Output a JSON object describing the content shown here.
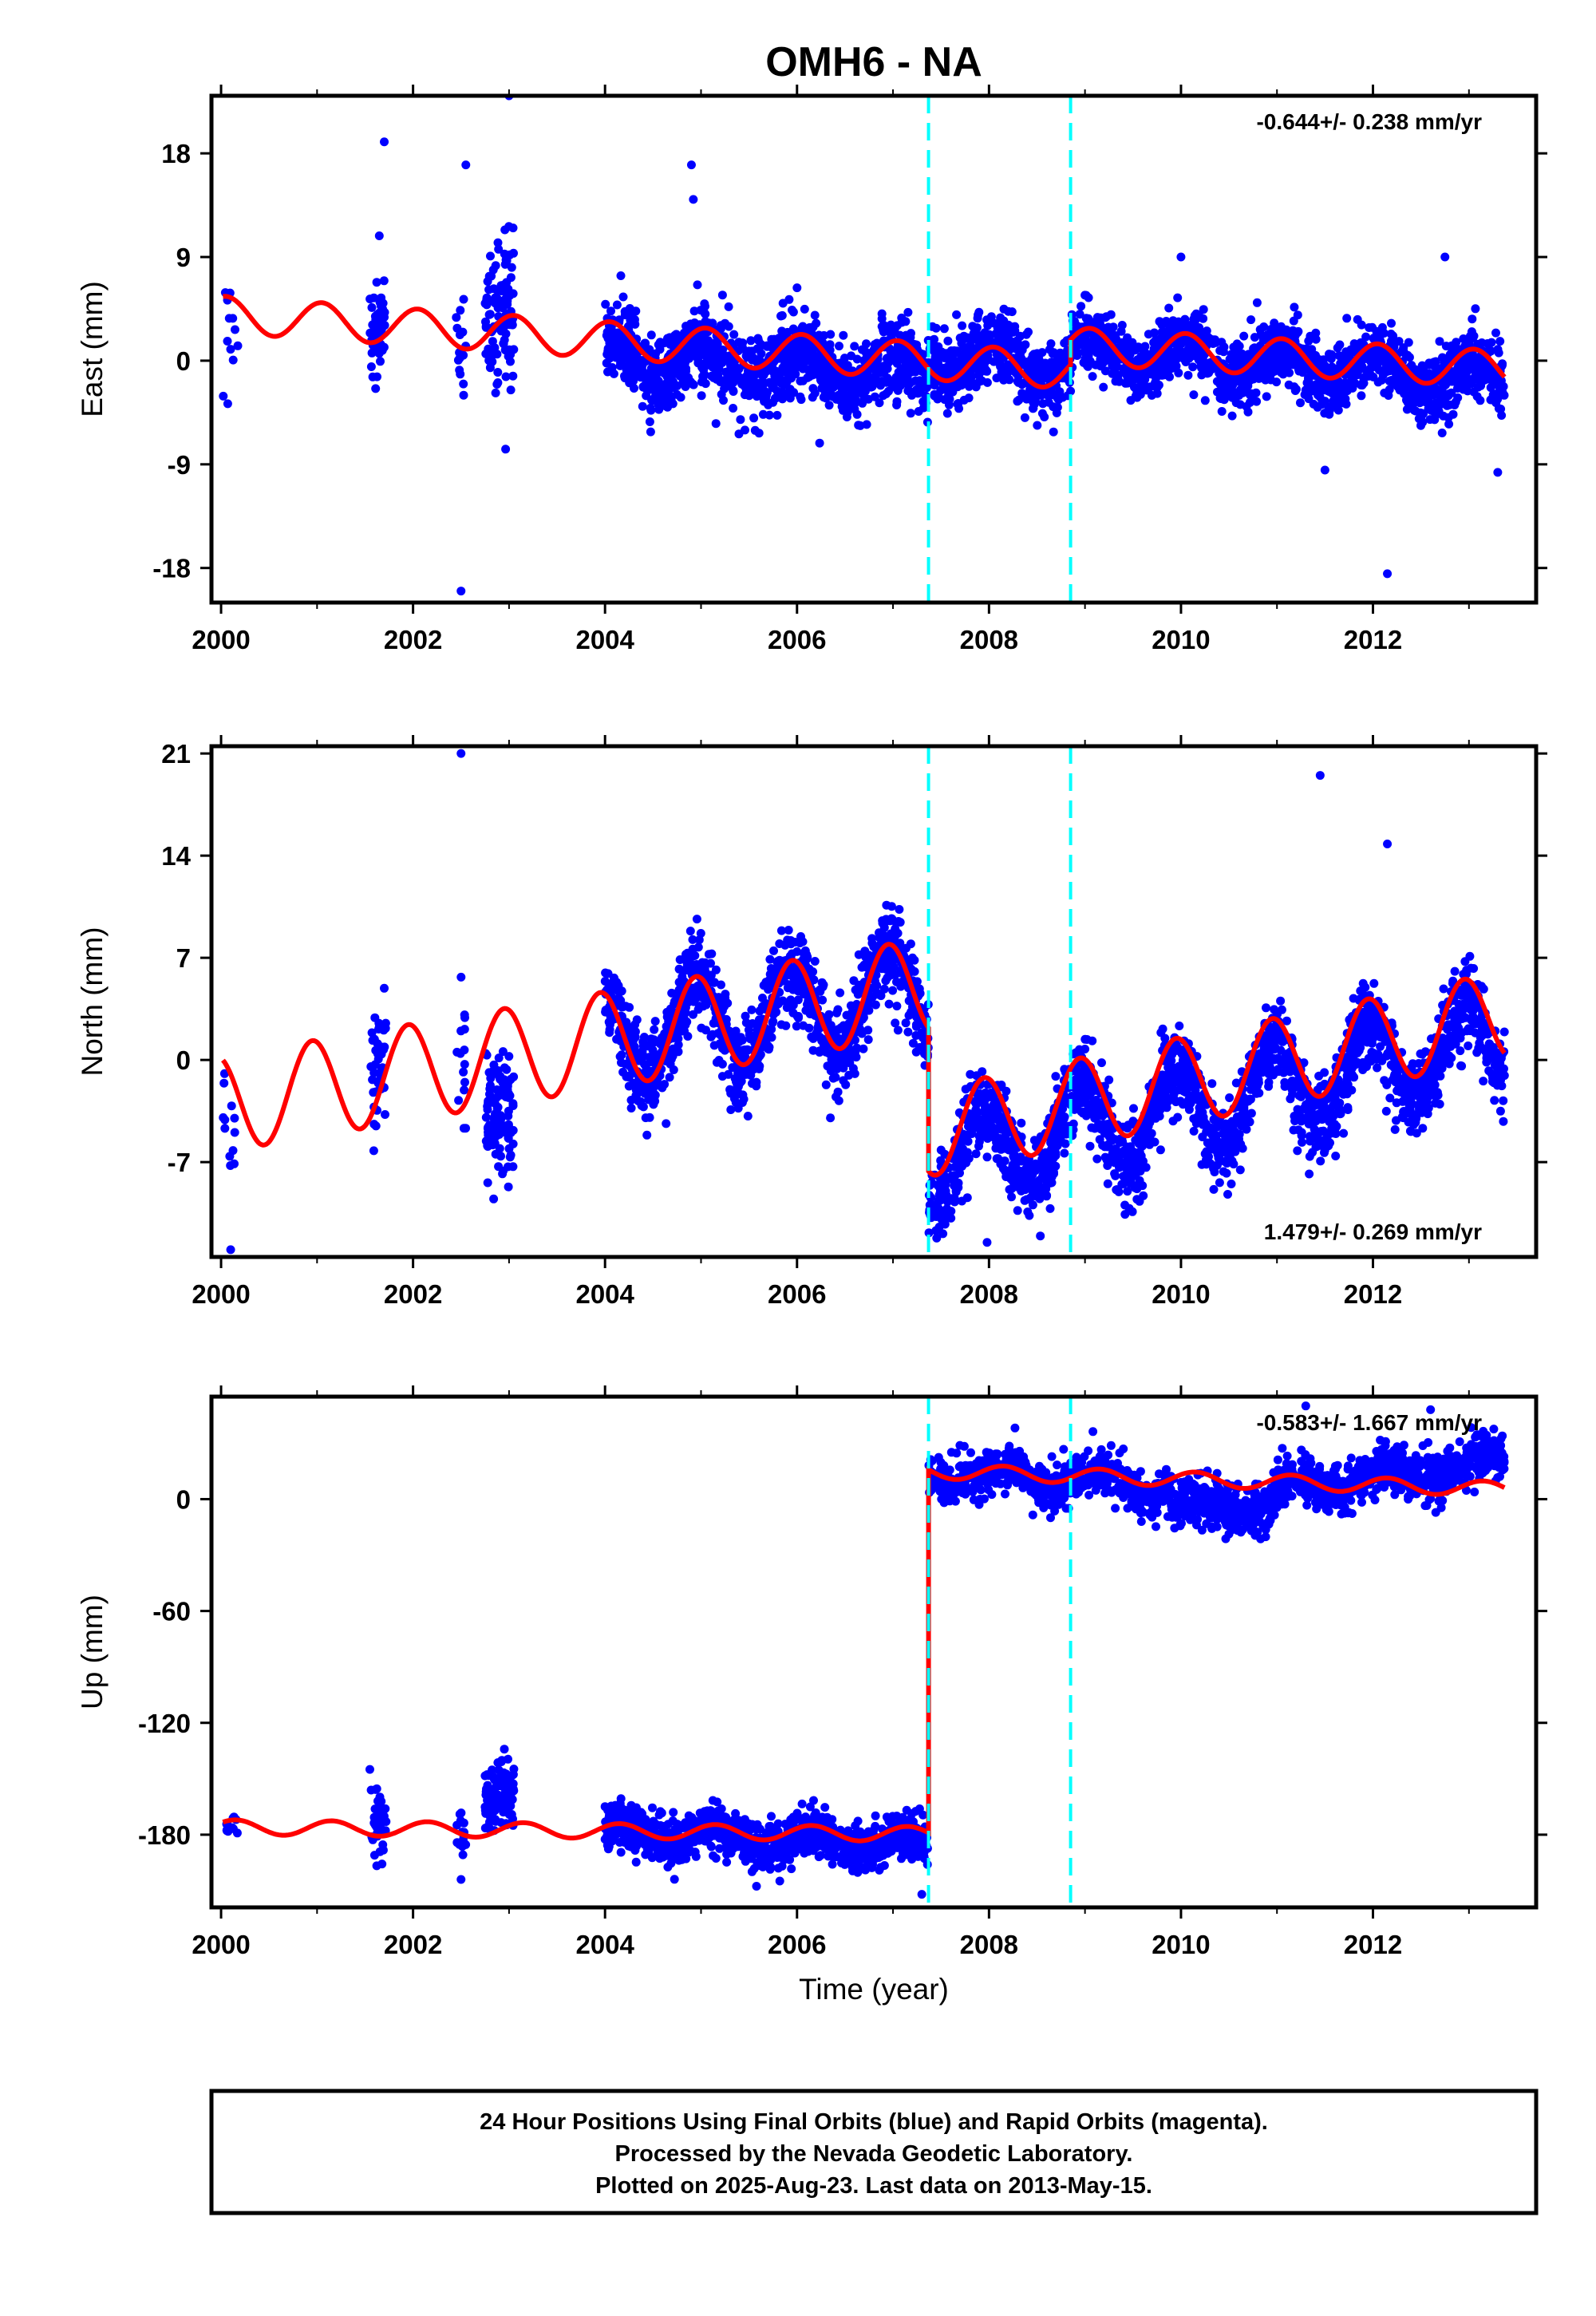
{
  "title": "OMH6 - NA",
  "colors": {
    "final_orbits": "#0000ff",
    "model": "#ff0000",
    "offset_line": "#00ffff",
    "frame": "#000000"
  },
  "footer": {
    "line1": "24 Hour Positions Using Final Orbits (blue) and Rapid Orbits (magenta).",
    "line2": "Processed by the Nevada Geodetic Laboratory.",
    "line3": "Plotted on 2025-Aug-23. Last data on 2013-May-15."
  },
  "chart_data": [
    {
      "type": "scatter",
      "component": "east",
      "ylabel": "East (mm)",
      "xlabel": "",
      "rate_text": "-0.644+/- 0.238 mm/yr",
      "rate_position": "top-right",
      "xlim": [
        1999.9,
        2013.7
      ],
      "ylim": [
        -21,
        23
      ],
      "xticks": [
        2000,
        2002,
        2004,
        2006,
        2008,
        2010,
        2012
      ],
      "yticks": [
        18,
        9,
        0,
        -9,
        -18
      ],
      "ytick_labels": [
        "18",
        "9",
        "0",
        "-9",
        "-18"
      ],
      "offset_epochs": [
        2007.37,
        2008.85
      ],
      "model_step_at": 2008.85,
      "outliers": [
        [
          2002.5,
          -20
        ],
        [
          2002.55,
          17
        ],
        [
          2003.0,
          23
        ],
        [
          2001.7,
          19
        ],
        [
          2012.15,
          -18.5
        ],
        [
          2011.5,
          -9.5
        ],
        [
          2013.3,
          -9.7
        ],
        [
          2004.9,
          17
        ],
        [
          2004.92,
          14
        ],
        [
          2010.0,
          9
        ],
        [
          2012.75,
          9
        ]
      ],
      "series": [
        {
          "name": "Final Orbits",
          "color": "#0000ff",
          "segments": [
            {
              "x_start": 2000.02,
              "x_end": 2000.18,
              "base": 2.5,
              "trend": 0,
              "amp": 0.5,
              "phase": 0.2,
              "noise": 2.2,
              "n": 12
            },
            {
              "x_start": 2001.55,
              "x_end": 2001.72,
              "base": 3.5,
              "trend": 0,
              "amp": 0.5,
              "phase": 0.2,
              "noise": 2.6,
              "n": 45
            },
            {
              "x_start": 2002.45,
              "x_end": 2002.55,
              "base": 1.5,
              "trend": 0,
              "amp": 0.5,
              "phase": 0.2,
              "noise": 2.5,
              "n": 15
            },
            {
              "x_start": 2002.75,
              "x_end": 2003.05,
              "base": 4.0,
              "trend": 0,
              "amp": 0.5,
              "phase": 0.2,
              "noise": 3.0,
              "n": 110
            },
            {
              "x_start": 2004.0,
              "x_end": 2007.37,
              "base": 0.5,
              "trend": -0.5,
              "amp": 1.5,
              "phase": 0.2,
              "noise": 1.7,
              "n": 1150
            },
            {
              "x_start": 2007.37,
              "x_end": 2008.85,
              "base": 0.5,
              "trend": -0.6,
              "amp": 1.5,
              "phase": 0.2,
              "noise": 1.5,
              "n": 500
            },
            {
              "x_start": 2008.85,
              "x_end": 2013.37,
              "base": 1.0,
              "trend": -0.6,
              "amp": 1.5,
              "phase": 0.2,
              "noise": 1.4,
              "n": 1500
            }
          ]
        },
        {
          "name": "Model",
          "color": "#ff0000",
          "segments": [
            {
              "x_start": 2000.02,
              "x_end": 2008.85,
              "base": 4.0,
              "trend": -0.55,
              "amp": 1.6,
              "phase": 0.2
            },
            {
              "x_start": 2008.85,
              "x_end": 2013.37,
              "base": 1.3,
              "trend": -0.45,
              "amp": 1.6,
              "phase": 0.2
            }
          ]
        }
      ]
    },
    {
      "type": "scatter",
      "component": "north",
      "ylabel": "North (mm)",
      "xlabel": "",
      "rate_text": "1.479+/- 0.269 mm/yr",
      "rate_position": "bottom-right",
      "xlim": [
        1999.9,
        2013.7
      ],
      "ylim": [
        -13.5,
        21.5
      ],
      "xticks": [
        2000,
        2002,
        2004,
        2006,
        2008,
        2010,
        2012
      ],
      "yticks": [
        21,
        14,
        7,
        0,
        -7
      ],
      "ytick_labels": [
        "21",
        "14",
        "7",
        "0",
        "-7"
      ],
      "offset_epochs": [
        2007.37,
        2008.85
      ],
      "model_step_at": 2007.37,
      "outliers": [
        [
          2002.5,
          21
        ],
        [
          2011.45,
          19.5
        ],
        [
          2012.15,
          14.8
        ],
        [
          2000.1,
          -13
        ],
        [
          2007.98,
          -12.5
        ]
      ],
      "series": [
        {
          "name": "Final Orbits",
          "color": "#0000ff",
          "segments": [
            {
              "x_start": 2000.02,
              "x_end": 2000.18,
              "base": -7.5,
              "trend": 1.5,
              "amp": 3.5,
              "phase": 0.3,
              "noise": 1.8,
              "n": 12
            },
            {
              "x_start": 2001.55,
              "x_end": 2001.72,
              "base": 0.0,
              "trend": 0,
              "amp": 1.0,
              "phase": 0.3,
              "noise": 2.3,
              "n": 45
            },
            {
              "x_start": 2002.45,
              "x_end": 2002.55,
              "base": 2.0,
              "trend": 0,
              "amp": 1.0,
              "phase": 0.3,
              "noise": 2.3,
              "n": 15
            },
            {
              "x_start": 2002.75,
              "x_end": 2003.05,
              "base": -4.5,
              "trend": 0,
              "amp": 1.0,
              "phase": 0.3,
              "noise": 2.1,
              "n": 110
            },
            {
              "x_start": 2004.0,
              "x_end": 2007.37,
              "base": 1.5,
              "trend": 0.9,
              "amp": 3.3,
              "phase": 0.3,
              "noise": 1.5,
              "n": 1150
            },
            {
              "x_start": 2007.37,
              "x_end": 2013.37,
              "base": -7.0,
              "trend": 1.4,
              "amp": 3.0,
              "phase": 0.3,
              "noise": 1.4,
              "n": 2000
            }
          ]
        },
        {
          "name": "Model",
          "color": "#ff0000",
          "segments": [
            {
              "x_start": 2000.02,
              "x_end": 2007.37,
              "base": -3.0,
              "trend": 1.1,
              "amp": 3.3,
              "phase": 0.3
            },
            {
              "x_start": 2007.37,
              "x_end": 2013.37,
              "base": -5.0,
              "trend": 1.35,
              "amp": 3.0,
              "phase": 0.3
            }
          ]
        }
      ]
    },
    {
      "type": "scatter",
      "component": "up",
      "ylabel": "Up (mm)",
      "xlabel": "Time (year)",
      "rate_text": "-0.583+/- 1.667 mm/yr",
      "rate_position": "top-right",
      "xlim": [
        1999.9,
        2013.7
      ],
      "ylim": [
        -219,
        55
      ],
      "xticks": [
        2000,
        2002,
        2004,
        2006,
        2008,
        2010,
        2012
      ],
      "yticks": [
        0,
        -60,
        -120,
        -180
      ],
      "ytick_labels": [
        "0",
        "-60",
        "-120",
        "-180"
      ],
      "offset_epochs": [
        2007.37,
        2008.85
      ],
      "model_step_at": 2007.37,
      "outliers": [
        [
          2001.55,
          -145
        ],
        [
          2002.5,
          -204
        ],
        [
          2007.3,
          -212
        ],
        [
          2011.3,
          50
        ],
        [
          2012.6,
          48
        ]
      ],
      "series": [
        {
          "name": "Final Orbits",
          "color": "#0000ff",
          "segments": [
            {
              "x_start": 2000.02,
              "x_end": 2000.18,
              "base": -178,
              "trend": 0,
              "amp": 2,
              "phase": 0.1,
              "noise": 4,
              "n": 12
            },
            {
              "x_start": 2001.55,
              "x_end": 2001.72,
              "base": -172,
              "trend": 0,
              "amp": 2,
              "phase": 0.1,
              "noise": 8,
              "n": 45
            },
            {
              "x_start": 2002.45,
              "x_end": 2002.55,
              "base": -178,
              "trend": 0,
              "amp": 2,
              "phase": 0.1,
              "noise": 8,
              "n": 15
            },
            {
              "x_start": 2002.75,
              "x_end": 2003.05,
              "base": -158,
              "trend": 0,
              "amp": 2,
              "phase": 0.1,
              "noise": 10,
              "n": 110
            },
            {
              "x_start": 2004.0,
              "x_end": 2007.37,
              "base": -178,
              "trend": -2.5,
              "amp": 5,
              "phase": 0.1,
              "noise": 6,
              "n": 1150
            },
            {
              "x_start": 2007.37,
              "x_end": 2009.9,
              "base": 15,
              "trend": -3.5,
              "amp": 5,
              "phase": 0.1,
              "noise": 6,
              "n": 650
            },
            {
              "x_start": 2009.9,
              "x_end": 2011.0,
              "base": -5,
              "trend": 1,
              "amp": 4,
              "phase": 0.1,
              "noise": 6,
              "n": 350
            },
            {
              "x_start": 2011.0,
              "x_end": 2013.37,
              "base": 6,
              "trend": 6,
              "amp": 5,
              "phase": 0.1,
              "noise": 6,
              "n": 750
            }
          ]
        },
        {
          "name": "Model",
          "color": "#ff0000",
          "segments": [
            {
              "x_start": 2000.02,
              "x_end": 2007.37,
              "base": -176,
              "trend": -0.5,
              "amp": 4,
              "phase": 0.1
            },
            {
              "x_start": 2007.37,
              "x_end": 2013.37,
              "base": 15,
              "trend": -1.6,
              "amp": 4,
              "phase": 0.1
            }
          ]
        }
      ]
    }
  ]
}
